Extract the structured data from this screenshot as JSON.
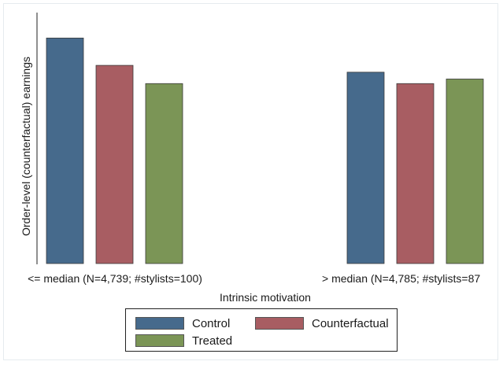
{
  "chart_data": {
    "type": "bar",
    "title": "",
    "ylabel": "Order-level (counterfactual) earnings",
    "xlabel": "Intrinsic motivation",
    "y_ticks_shown": false,
    "grid": false,
    "legend_position": "bottom",
    "ylim": [
      0,
      1
    ],
    "categories": [
      "<= median (N=4,739; #stylists=100)",
      "> median (N=4,785; #stylists=87"
    ],
    "series": [
      {
        "name": "Control",
        "color": "#466a8c",
        "values": [
          0.99,
          0.84
        ]
      },
      {
        "name": "Counterfactual",
        "color": "#a85d62",
        "values": [
          0.87,
          0.79
        ]
      },
      {
        "name": "Treated",
        "color": "#7b9556",
        "values": [
          0.79,
          0.81
        ]
      }
    ]
  }
}
